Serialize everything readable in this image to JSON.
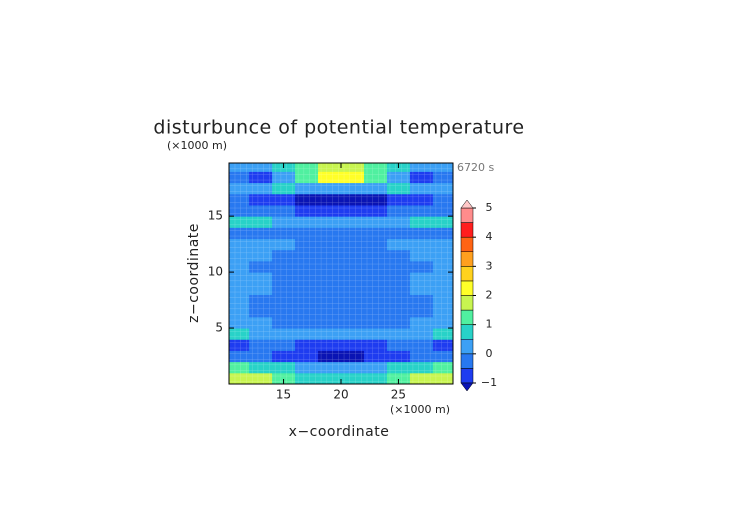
{
  "chart_data": {
    "type": "contour",
    "title": "disturbunce of potential temperature",
    "time_label": "6720 s",
    "x_label": "x−coordinate",
    "y_label": "z−coordinate",
    "x_unit": "(×1000 m)",
    "y_unit": "(×1000 m)",
    "xlim": [
      10.25,
      29.75
    ],
    "ylim": [
      0,
      19.75
    ],
    "xticks": [
      15,
      20,
      25
    ],
    "yticks": [
      5,
      10,
      15
    ],
    "field": {
      "x": [
        11,
        13,
        15,
        17,
        19,
        21,
        23,
        25,
        27,
        29
      ],
      "y": [
        0.5,
        1.5,
        2.5,
        3.5,
        4.5,
        5.5,
        6.5,
        7.5,
        8.5,
        9.5,
        10.5,
        11.5,
        12.5,
        13.5,
        14.5,
        15.5,
        16.5,
        17.5,
        18.5,
        19.5
      ],
      "values": [
        [
          1.6,
          1.8,
          1.3,
          0.8,
          0.6,
          0.6,
          0.8,
          1.3,
          1.8,
          1.6
        ],
        [
          1.2,
          0.8,
          0.6,
          0.4,
          0.3,
          0.3,
          0.4,
          0.6,
          0.8,
          1.2
        ],
        [
          -0.3,
          -0.4,
          -0.6,
          -0.8,
          -1.1,
          -1.1,
          -0.8,
          -0.6,
          -0.4,
          -0.3
        ],
        [
          -0.6,
          -0.5,
          -0.4,
          -0.6,
          -0.7,
          -0.7,
          -0.6,
          -0.4,
          -0.5,
          -0.6
        ],
        [
          0.8,
          0.3,
          0.2,
          0.1,
          0.1,
          0.1,
          0.1,
          0.2,
          0.3,
          0.8
        ],
        [
          0.3,
          0.1,
          -0.1,
          -0.2,
          -0.2,
          -0.2,
          -0.2,
          -0.1,
          0.1,
          0.3
        ],
        [
          0.1,
          -0.1,
          -0.3,
          -0.4,
          -0.4,
          -0.4,
          -0.4,
          -0.3,
          -0.1,
          0.1
        ],
        [
          0.1,
          -0.1,
          -0.2,
          -0.3,
          -0.4,
          -0.4,
          -0.3,
          -0.2,
          -0.1,
          0.1
        ],
        [
          0.2,
          0.1,
          -0.1,
          -0.2,
          -0.2,
          -0.2,
          -0.2,
          -0.1,
          0.1,
          0.2
        ],
        [
          0.2,
          0.1,
          -0.1,
          -0.1,
          -0.2,
          -0.2,
          -0.1,
          -0.1,
          0.1,
          0.2
        ],
        [
          0.1,
          -0.1,
          -0.2,
          -0.1,
          -0.1,
          -0.1,
          -0.1,
          -0.2,
          -0.1,
          0.1
        ],
        [
          0.2,
          0.3,
          -0.1,
          -0.1,
          -0.1,
          -0.1,
          -0.1,
          -0.1,
          0.3,
          0.2
        ],
        [
          0.1,
          0.2,
          0.1,
          -0.1,
          -0.1,
          -0.1,
          -0.1,
          0.1,
          0.2,
          0.1
        ],
        [
          -0.1,
          -0.1,
          -0.2,
          -0.4,
          -0.4,
          -0.4,
          -0.4,
          -0.2,
          -0.1,
          -0.1
        ],
        [
          0.7,
          0.8,
          0.2,
          0.1,
          0.2,
          0.2,
          0.1,
          0.2,
          0.8,
          0.7
        ],
        [
          -0.3,
          -0.4,
          -0.5,
          -0.6,
          -0.6,
          -0.6,
          -0.6,
          -0.5,
          -0.4,
          -0.3
        ],
        [
          -0.4,
          -0.6,
          -0.8,
          -1.1,
          -1.2,
          -1.2,
          -1.1,
          -0.8,
          -0.6,
          -0.4
        ],
        [
          0.3,
          0.2,
          0.6,
          0.4,
          0.3,
          0.3,
          0.4,
          0.6,
          0.2,
          0.3
        ],
        [
          -0.2,
          -0.8,
          0.3,
          1.2,
          2.2,
          2.2,
          1.2,
          0.3,
          -0.8,
          -0.2
        ],
        [
          0.2,
          0.1,
          0.6,
          1.2,
          1.6,
          1.6,
          1.2,
          0.6,
          0.1,
          0.2
        ]
      ]
    },
    "levels": [
      -1,
      -0.5,
      0,
      0.5,
      1,
      1.5,
      2,
      2.5,
      3,
      3.5,
      4,
      4.5,
      5
    ],
    "colors": [
      "#0a14b4",
      "#1e3cf0",
      "#2878f0",
      "#3ca0f5",
      "#28d2c8",
      "#50f0a0",
      "#c8f550",
      "#ffff28",
      "#ffd21e",
      "#ffa01e",
      "#ff6414",
      "#ff1e1e",
      "#ff8c8c",
      "#ffc8c8"
    ],
    "colorbar_ticks": [
      {
        "value": -1,
        "label": "−1"
      },
      0,
      1,
      2,
      3,
      4,
      5
    ]
  }
}
